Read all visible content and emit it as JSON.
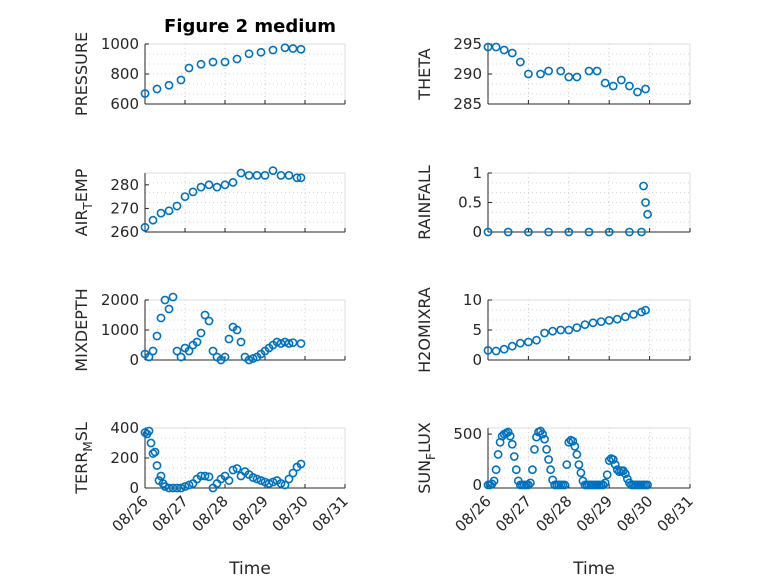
{
  "title": "Figure 2 medium",
  "xlabel": "Time",
  "x_ticks": [
    "08/26",
    "08/27",
    "08/28",
    "08/29",
    "08/30",
    "08/31"
  ],
  "marker_color": "#0072BD",
  "chart_data": [
    {
      "type": "scatter",
      "ylabel": "PRESSURE",
      "ylim": [
        600,
        1000
      ],
      "yticks": [
        "600",
        "800",
        "1000"
      ],
      "grid": "on",
      "x": [
        26.0,
        26.3,
        26.6,
        26.9,
        27.1,
        27.4,
        27.7,
        28.0,
        28.3,
        28.6,
        28.9,
        29.2,
        29.5,
        29.7,
        29.9
      ],
      "y": [
        670,
        700,
        725,
        760,
        840,
        865,
        880,
        880,
        900,
        935,
        945,
        960,
        975,
        970,
        965
      ]
    },
    {
      "type": "scatter",
      "ylabel": "THETA",
      "ylim": [
        285,
        295
      ],
      "yticks": [
        "285",
        "290",
        "295"
      ],
      "grid": "on",
      "x": [
        26.0,
        26.2,
        26.4,
        26.6,
        26.8,
        27.0,
        27.3,
        27.5,
        27.8,
        28.0,
        28.2,
        28.5,
        28.7,
        28.9,
        29.1,
        29.3,
        29.5,
        29.7,
        29.9
      ],
      "y": [
        294.5,
        294.5,
        294.0,
        293.5,
        292.0,
        290.0,
        290.0,
        290.5,
        290.5,
        289.5,
        289.5,
        290.5,
        290.5,
        288.5,
        288.0,
        289.0,
        288.0,
        287.0,
        287.5
      ]
    },
    {
      "type": "scatter",
      "ylabel": "AIR_TEMP",
      "ylim": [
        260,
        285
      ],
      "yticks": [
        "260",
        "270",
        "280"
      ],
      "grid": "on",
      "x": [
        26.0,
        26.2,
        26.4,
        26.6,
        26.8,
        27.0,
        27.2,
        27.4,
        27.6,
        27.8,
        28.0,
        28.2,
        28.4,
        28.6,
        28.8,
        29.0,
        29.2,
        29.4,
        29.6,
        29.8,
        29.9
      ],
      "y": [
        262,
        265,
        268,
        269,
        271,
        275,
        277,
        279,
        280,
        279,
        280,
        281,
        285,
        284,
        284,
        284,
        286,
        284,
        284,
        283,
        283
      ]
    },
    {
      "type": "scatter",
      "ylabel": "RAINFALL",
      "ylim": [
        0,
        1
      ],
      "yticks": [
        "0",
        "0.5",
        "1"
      ],
      "grid": "on",
      "x": [
        26.0,
        26.5,
        27.0,
        27.5,
        28.0,
        28.5,
        29.0,
        29.5,
        29.8,
        29.85,
        29.9,
        29.95
      ],
      "y": [
        0,
        0,
        0,
        0,
        0,
        0,
        0,
        0,
        0,
        0.78,
        0.5,
        0.3
      ]
    },
    {
      "type": "scatter",
      "ylabel": "MIXDEPTH",
      "ylim": [
        0,
        2000
      ],
      "yticks": [
        "0",
        "1000",
        "2000"
      ],
      "grid": "on",
      "x": [
        26.0,
        26.1,
        26.2,
        26.3,
        26.4,
        26.5,
        26.6,
        26.7,
        26.8,
        26.9,
        27.0,
        27.1,
        27.2,
        27.3,
        27.4,
        27.5,
        27.6,
        27.7,
        27.8,
        27.9,
        28.0,
        28.1,
        28.2,
        28.3,
        28.4,
        28.5,
        28.6,
        28.7,
        28.8,
        28.9,
        29.0,
        29.1,
        29.2,
        29.3,
        29.4,
        29.5,
        29.6,
        29.7,
        29.9
      ],
      "y": [
        200,
        100,
        300,
        800,
        1400,
        2000,
        1700,
        2100,
        300,
        100,
        400,
        300,
        500,
        600,
        900,
        1500,
        1300,
        300,
        100,
        0,
        100,
        700,
        1100,
        1000,
        600,
        100,
        0,
        50,
        100,
        200,
        300,
        400,
        500,
        600,
        550,
        600,
        550,
        580,
        550
      ]
    },
    {
      "type": "scatter",
      "ylabel": "H2OMIXRA",
      "ylim": [
        0,
        10
      ],
      "yticks": [
        "0",
        "5",
        "10"
      ],
      "grid": "on",
      "x": [
        26.0,
        26.2,
        26.4,
        26.6,
        26.8,
        27.0,
        27.2,
        27.4,
        27.6,
        27.8,
        28.0,
        28.2,
        28.4,
        28.6,
        28.8,
        29.0,
        29.2,
        29.4,
        29.6,
        29.8,
        29.9
      ],
      "y": [
        1.6,
        1.5,
        1.8,
        2.3,
        2.8,
        3.0,
        3.3,
        4.5,
        4.8,
        5.0,
        5.0,
        5.4,
        5.9,
        6.2,
        6.4,
        6.6,
        6.8,
        7.2,
        7.6,
        8.0,
        8.3
      ]
    },
    {
      "type": "scatter",
      "ylabel": "TERR_MSL",
      "ylim": [
        0,
        400
      ],
      "yticks": [
        "0",
        "200",
        "400"
      ],
      "grid": "on",
      "x": [
        26.0,
        26.05,
        26.1,
        26.15,
        26.2,
        26.25,
        26.3,
        26.35,
        26.4,
        26.45,
        26.5,
        26.6,
        26.7,
        26.8,
        26.9,
        27.0,
        27.1,
        27.2,
        27.3,
        27.4,
        27.5,
        27.6,
        27.7,
        27.8,
        27.9,
        28.0,
        28.1,
        28.2,
        28.3,
        28.4,
        28.5,
        28.6,
        28.7,
        28.8,
        28.9,
        29.0,
        29.1,
        29.2,
        29.3,
        29.4,
        29.5,
        29.6,
        29.7,
        29.8,
        29.9
      ],
      "y": [
        370,
        360,
        380,
        300,
        230,
        240,
        150,
        50,
        80,
        30,
        10,
        0,
        0,
        0,
        0,
        10,
        20,
        30,
        60,
        80,
        80,
        75,
        0,
        30,
        60,
        80,
        50,
        120,
        130,
        80,
        110,
        90,
        70,
        60,
        50,
        40,
        30,
        40,
        50,
        30,
        20,
        60,
        100,
        140,
        160
      ]
    },
    {
      "type": "scatter",
      "ylabel": "SUN_FLUX",
      "ylim": [
        -30,
        560
      ],
      "yticks": [
        "0",
        "500"
      ],
      "grid": "on",
      "x": [
        26.0,
        26.05,
        26.1,
        26.15,
        26.2,
        26.25,
        26.3,
        26.35,
        26.4,
        26.45,
        26.5,
        26.55,
        26.6,
        26.65,
        26.7,
        26.75,
        26.8,
        26.85,
        26.9,
        26.95,
        27.0,
        27.05,
        27.1,
        27.15,
        27.2,
        27.25,
        27.3,
        27.35,
        27.4,
        27.45,
        27.5,
        27.55,
        27.6,
        27.65,
        27.7,
        27.75,
        27.8,
        27.85,
        27.9,
        27.95,
        28.0,
        28.05,
        28.1,
        28.15,
        28.2,
        28.25,
        28.3,
        28.35,
        28.4,
        28.45,
        28.5,
        28.55,
        28.6,
        28.65,
        28.7,
        28.75,
        28.8,
        28.85,
        28.9,
        28.95,
        29.0,
        29.05,
        29.1,
        29.15,
        29.2,
        29.25,
        29.3,
        29.35,
        29.4,
        29.45,
        29.5,
        29.55,
        29.6,
        29.65,
        29.7,
        29.75,
        29.8,
        29.85,
        29.9,
        29.95
      ],
      "y": [
        0,
        0,
        10,
        40,
        150,
        300,
        420,
        480,
        500,
        510,
        520,
        480,
        400,
        280,
        150,
        40,
        0,
        0,
        0,
        0,
        0,
        20,
        150,
        350,
        470,
        520,
        530,
        500,
        450,
        350,
        250,
        150,
        50,
        0,
        0,
        0,
        0,
        0,
        0,
        200,
        420,
        440,
        430,
        380,
        300,
        200,
        120,
        40,
        0,
        0,
        0,
        0,
        0,
        0,
        0,
        0,
        0,
        0,
        20,
        100,
        240,
        260,
        250,
        200,
        150,
        130,
        140,
        140,
        110,
        60,
        20,
        0,
        0,
        0,
        0,
        0,
        0,
        0,
        0,
        0
      ]
    }
  ]
}
